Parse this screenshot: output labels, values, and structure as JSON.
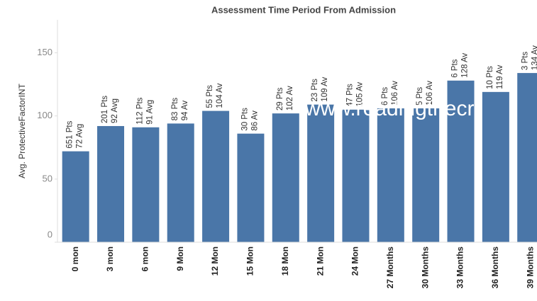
{
  "chart_data": {
    "type": "bar",
    "title": "Assessment Time Period From Admission",
    "y_label": "Avg. ProtectiveFactorINT",
    "categories": [
      "0 mon",
      "3 mon",
      "6 mon",
      "9 Mon",
      "12 Mon",
      "15 Mon",
      "18 Mon",
      "21 Mon",
      "24 Mon",
      "27 Months",
      "30 Months",
      "33 Months",
      "36 Months",
      "39 Months"
    ],
    "values": [
      72,
      92,
      91,
      94,
      104,
      86,
      102,
      109,
      105,
      106,
      106,
      128,
      119,
      134
    ],
    "value_labels": [
      "72 Avg",
      "92 Avg",
      "91 Avg",
      "94 Av",
      "104 Av",
      "86 Av",
      "102 Av",
      "109 Av",
      "105 Av",
      "106 Av",
      "106 Av",
      "128 Av",
      "119 Av",
      "134 Av"
    ],
    "points_labels": [
      "651 Pts",
      "201 Pts",
      "112 Pts",
      "83 Pts",
      "55 Pts",
      "30 Pts",
      "29 Pts",
      "23 Pts",
      "47 Pts",
      "6 Pts",
      "5 Pts",
      "6 Pts",
      "10 Pts",
      "3 Pts"
    ],
    "color": "#4a76a8",
    "ylim": [
      0,
      175
    ],
    "yticks": [
      0,
      50,
      100,
      150
    ],
    "watermark": "www.readingthecri"
  }
}
